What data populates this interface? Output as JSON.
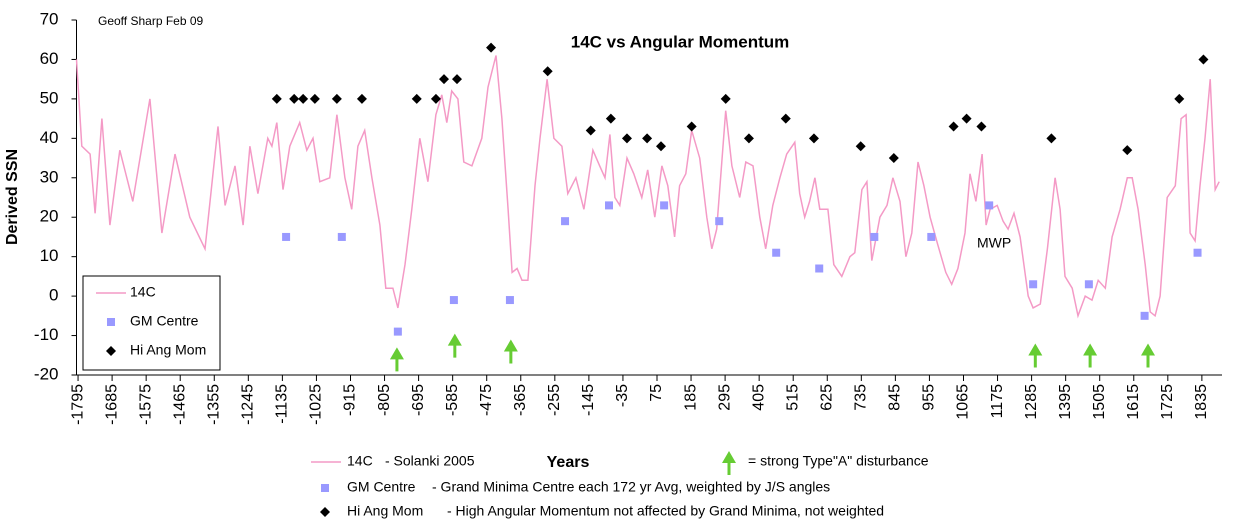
{
  "chart_data": {
    "type": "line",
    "title": "14C vs Angular Momentum",
    "author_note": "Geoff Sharp Feb 09",
    "y_label": "Derived SSN",
    "x_label": "Years",
    "annotation": "MWP",
    "xlim": [
      -1800,
      1900
    ],
    "ylim": [
      -20,
      70
    ],
    "yticks": [
      -20,
      -10,
      0,
      10,
      20,
      30,
      40,
      50,
      60,
      70
    ],
    "xticks": [
      -1795,
      -1685,
      -1575,
      -1465,
      -1355,
      -1245,
      -1135,
      -1025,
      -915,
      -805,
      -695,
      -585,
      -475,
      -365,
      -255,
      -145,
      -35,
      75,
      185,
      295,
      405,
      515,
      625,
      735,
      845,
      955,
      1065,
      1175,
      1285,
      1395,
      1505,
      1615,
      1725,
      1835
    ],
    "grid": false,
    "series": [
      {
        "name": "14C",
        "color": "#f49ac6",
        "marker": "line",
        "x": [
          -1800,
          -1783,
          -1756,
          -1740,
          -1718,
          -1692,
          -1660,
          -1618,
          -1563,
          -1524,
          -1482,
          -1434,
          -1385,
          -1343,
          -1320,
          -1288,
          -1262,
          -1240,
          -1214,
          -1182,
          -1169,
          -1153,
          -1133,
          -1111,
          -1079,
          -1056,
          -1036,
          -1014,
          -982,
          -959,
          -933,
          -911,
          -891,
          -869,
          -846,
          -820,
          -801,
          -778,
          -762,
          -739,
          -717,
          -691,
          -665,
          -639,
          -620,
          -604,
          -588,
          -568,
          -549,
          -523,
          -491,
          -471,
          -445,
          -426,
          -406,
          -393,
          -377,
          -361,
          -342,
          -319,
          -303,
          -280,
          -258,
          -232,
          -213,
          -187,
          -161,
          -132,
          -110,
          -93,
          -77,
          -61,
          -45,
          -22,
          0,
          26,
          45,
          68,
          91,
          110,
          132,
          148,
          168,
          187,
          213,
          236,
          252,
          268,
          297,
          317,
          342,
          362,
          385,
          407,
          426,
          449,
          472,
          494,
          520,
          536,
          552,
          568,
          585,
          601,
          627,
          646,
          672,
          698,
          714,
          737,
          753,
          769,
          795,
          818,
          837,
          860,
          879,
          898,
          918,
          937,
          957,
          982,
          1008,
          1027,
          1047,
          1070,
          1086,
          1105,
          1125,
          1138,
          1151,
          1174,
          1193,
          1209,
          1228,
          1248,
          1274,
          1290,
          1313,
          1336,
          1361,
          1377,
          1393,
          1416,
          1435,
          1458,
          1480,
          1500,
          1523,
          1545,
          1571,
          1594,
          1610,
          1629,
          1652,
          1668,
          1684,
          1700,
          1723,
          1749,
          1768,
          1784,
          1797,
          1813,
          1829,
          1845,
          1862,
          1878,
          1891
        ],
        "values": [
          60,
          38,
          36,
          21,
          45,
          18,
          37,
          24,
          50,
          16,
          36,
          20,
          12,
          43,
          23,
          33,
          18,
          38,
          26,
          40,
          38,
          44,
          27,
          38,
          44,
          37,
          40,
          29,
          30,
          46,
          30,
          22,
          38,
          42,
          30,
          18,
          2,
          2,
          -3,
          8,
          22,
          40,
          29,
          46,
          51,
          44,
          52,
          50,
          34,
          33,
          40,
          53,
          61,
          45,
          22,
          6,
          7,
          4,
          4,
          28,
          40,
          55,
          40,
          38,
          26,
          30,
          22,
          37,
          33,
          30,
          41,
          25,
          23,
          35,
          31,
          25,
          32,
          20,
          33,
          28,
          15,
          28,
          31,
          42,
          35,
          20,
          12,
          17,
          47,
          33,
          25,
          34,
          33,
          20,
          12,
          23,
          30,
          36,
          39,
          26,
          20,
          24,
          30,
          22,
          22,
          8,
          5,
          10,
          11,
          27,
          29,
          9,
          20,
          23,
          30,
          24,
          10,
          16,
          34,
          28,
          20,
          13,
          6,
          3,
          7,
          16,
          31,
          24,
          36,
          18,
          22,
          23,
          19,
          17,
          21,
          15,
          0,
          -3,
          -2,
          12,
          30,
          22,
          5,
          2,
          -5,
          0,
          -1,
          4,
          2,
          15,
          22,
          30,
          30,
          22,
          8,
          -4,
          -5,
          0,
          25,
          28,
          45,
          46,
          16,
          14,
          28,
          40,
          55,
          27,
          29
        ]
      },
      {
        "name": "GM Centre",
        "color": "#9999ff",
        "marker": "square",
        "x": [
          -1123,
          -943,
          -762,
          -581,
          -400,
          -222,
          -80,
          98,
          276,
          460,
          599,
          777,
          961,
          1148,
          1290,
          1470,
          1650,
          1821
        ],
        "values": [
          15,
          15,
          -9,
          -1,
          -1,
          19,
          23,
          23,
          19,
          11,
          7,
          15,
          15,
          23,
          3,
          3,
          -5,
          11
        ]
      },
      {
        "name": "Hi Ang Mom",
        "color": "#000000",
        "marker": "diamond",
        "x": [
          -1153,
          -1097,
          -1068,
          -1030,
          -959,
          -878,
          -701,
          -639,
          -613,
          -571,
          -461,
          -278,
          -139,
          -74,
          -22,
          43,
          88,
          187,
          297,
          372,
          491,
          582,
          733,
          840,
          1033,
          1075,
          1123,
          1349,
          1594,
          1762,
          1840
        ],
        "values": [
          50,
          50,
          50,
          50,
          50,
          50,
          50,
          50,
          55,
          55,
          63,
          57,
          42,
          45,
          40,
          40,
          38,
          43,
          50,
          40,
          45,
          40,
          38,
          35,
          43,
          45,
          43,
          40,
          37,
          50,
          60
        ]
      },
      {
        "name": "= strong Type\"A\" disturbance",
        "color": "#66cc33",
        "marker": "arrow",
        "x": [
          -765,
          -578,
          -397,
          1297,
          1474,
          1661
        ],
        "values": [
          -13,
          -9.5,
          -11,
          -12,
          -12,
          -12
        ]
      }
    ],
    "legend_notes": [
      "- Solanki 2005",
      "- Grand Minima Centre each 172 yr Avg, weighted by  J/S angles",
      "- High Angular Momentum not affected by Grand Minima, not weighted"
    ]
  }
}
